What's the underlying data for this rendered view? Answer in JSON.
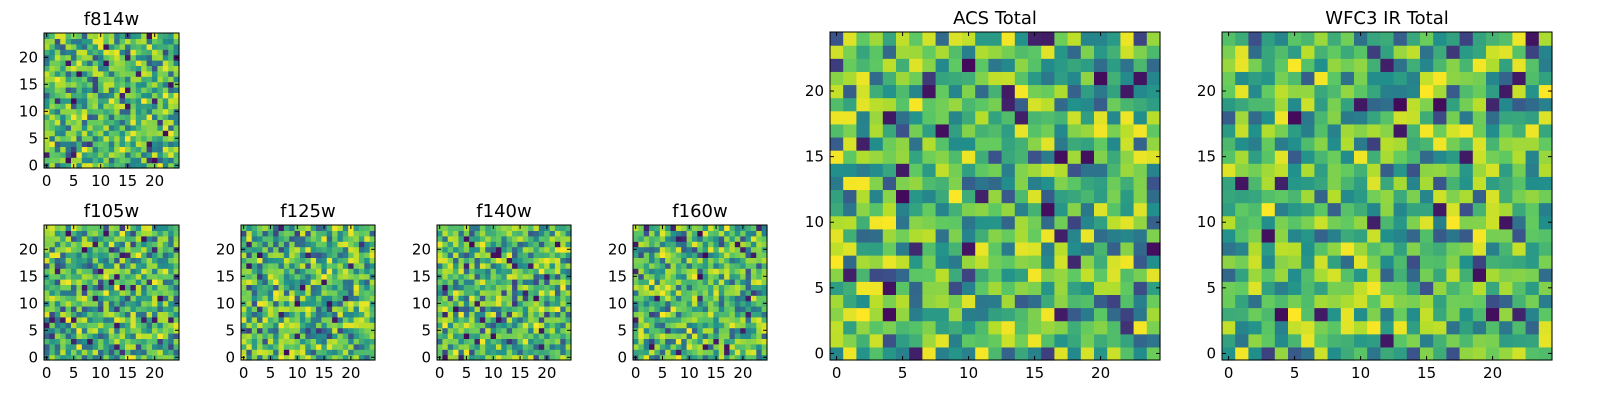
{
  "palette": [
    "#440154",
    "#3b528b",
    "#21918c",
    "#5ec962",
    "#b5de2b",
    "#fde725"
  ],
  "chart_data": [
    {
      "type": "heatmap",
      "title": "f814w",
      "grid": [
        25,
        25
      ],
      "xticks": [
        0,
        5,
        10,
        15,
        20
      ],
      "yticks": [
        0,
        5,
        10,
        15,
        20
      ],
      "seed": 11
    },
    {
      "type": "heatmap",
      "title": "f105w",
      "grid": [
        25,
        25
      ],
      "xticks": [
        0,
        5,
        10,
        15,
        20
      ],
      "yticks": [
        0,
        5,
        10,
        15,
        20
      ],
      "seed": 23
    },
    {
      "type": "heatmap",
      "title": "f125w",
      "grid": [
        25,
        25
      ],
      "xticks": [
        0,
        5,
        10,
        15,
        20
      ],
      "yticks": [
        0,
        5,
        10,
        15,
        20
      ],
      "seed": 37
    },
    {
      "type": "heatmap",
      "title": "f140w",
      "grid": [
        25,
        25
      ],
      "xticks": [
        0,
        5,
        10,
        15,
        20
      ],
      "yticks": [
        0,
        5,
        10,
        15,
        20
      ],
      "seed": 41
    },
    {
      "type": "heatmap",
      "title": "f160w",
      "grid": [
        25,
        25
      ],
      "xticks": [
        0,
        5,
        10,
        15,
        20
      ],
      "yticks": [
        0,
        5,
        10,
        15,
        20
      ],
      "seed": 53
    },
    {
      "type": "heatmap",
      "title": "ACS Total",
      "grid": [
        25,
        25
      ],
      "xticks": [
        0,
        5,
        10,
        15,
        20
      ],
      "yticks": [
        0,
        5,
        10,
        15,
        20
      ],
      "seed": 67
    },
    {
      "type": "heatmap",
      "title": "WFC3 IR Total",
      "grid": [
        25,
        25
      ],
      "xticks": [
        0,
        5,
        10,
        15,
        20
      ],
      "yticks": [
        0,
        5,
        10,
        15,
        20
      ],
      "seed": 79
    }
  ]
}
